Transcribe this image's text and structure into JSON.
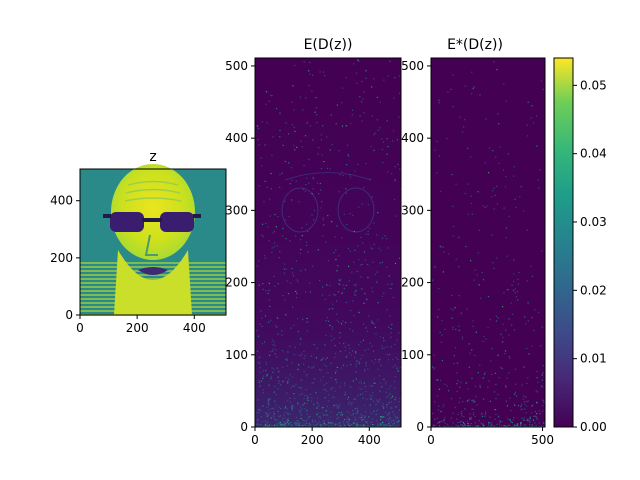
{
  "chart_data": [
    {
      "type": "heatmap",
      "title": "z",
      "xlabel": "",
      "ylabel": "",
      "xlim": [
        0,
        511
      ],
      "ylim": [
        511,
        0
      ],
      "xticks": [
        "0",
        "200",
        "400"
      ],
      "yticks": [
        "0",
        "200",
        "400"
      ],
      "content": "grayscale face image shown with viridis colormap"
    },
    {
      "type": "heatmap",
      "title": "E(D(z))",
      "xlabel": "",
      "ylabel": "",
      "xlim": [
        0,
        511
      ],
      "ylim": [
        0,
        511
      ],
      "xticks": [
        "0",
        "200",
        "400"
      ],
      "yticks": [
        "0",
        "100",
        "200",
        "300",
        "400",
        "500"
      ],
      "content": "sparse error map, mostly near zero"
    },
    {
      "type": "heatmap",
      "title": "E*(D(z))",
      "xlabel": "",
      "ylabel": "",
      "xlim": [
        0,
        511
      ],
      "ylim": [
        0,
        511
      ],
      "xticks": [
        "0",
        "500"
      ],
      "yticks": [
        "0",
        "100",
        "200",
        "300",
        "400",
        "500"
      ],
      "content": "sparse error map, mostly near zero"
    }
  ],
  "colorbar": {
    "colormap": "viridis",
    "range": [
      0.0,
      0.054
    ],
    "ticks": [
      "0.00",
      "0.01",
      "0.02",
      "0.03",
      "0.04",
      "0.05"
    ]
  }
}
